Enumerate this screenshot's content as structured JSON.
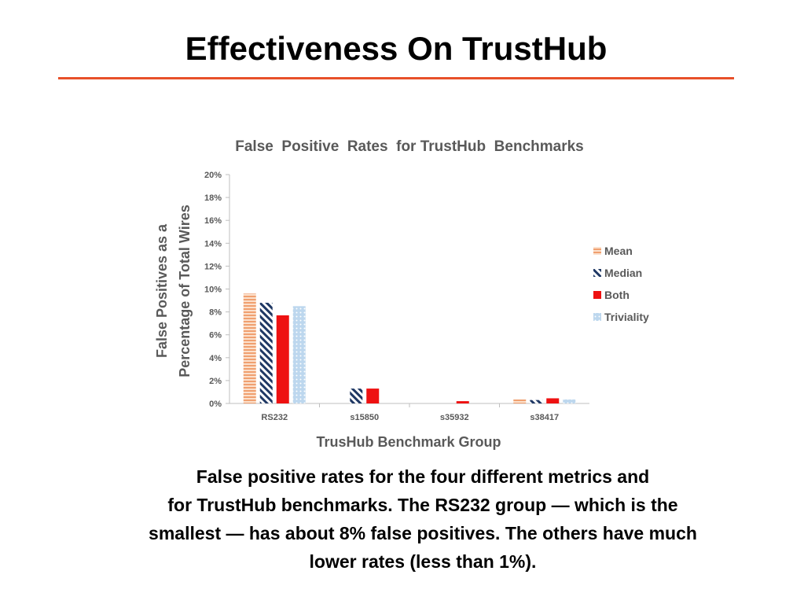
{
  "slide": {
    "title": "Effectiveness On TrustHub",
    "caption_lines": [
      "False positive rates for the four different metrics and",
      "for TrustHub benchmarks. The RS232 group — which is the",
      "smallest — has about 8% false positives. The others have much",
      "lower rates (less than 1%)."
    ]
  },
  "colors": {
    "title_rule": "#e8502a",
    "mean": "#f0a070",
    "median": "#1f3864",
    "both": "#ee1111",
    "triviality": "#bdd7ee",
    "axis_text": "#595959"
  },
  "chart_data": {
    "type": "bar",
    "title": "False  Positive  Rates  for TrustHub  Benchmarks",
    "xlabel": "TrusHub Benchmark Group",
    "ylabel_lines": [
      "False Positives as a",
      "Percentage of Total Wires"
    ],
    "categories": [
      "RS232",
      "s15850",
      "s35932",
      "s38417"
    ],
    "series": [
      {
        "name": "Mean",
        "values": [
          9.6,
          0,
          0,
          0.35
        ],
        "pattern": "hstripe",
        "color_key": "mean"
      },
      {
        "name": "Median",
        "values": [
          8.8,
          1.3,
          0,
          0.3
        ],
        "pattern": "diagonal",
        "color_key": "median"
      },
      {
        "name": "Both",
        "values": [
          7.7,
          1.3,
          0.2,
          0.45
        ],
        "pattern": "solid",
        "color_key": "both"
      },
      {
        "name": "Triviality",
        "values": [
          8.5,
          0,
          0,
          0.35
        ],
        "pattern": "dots",
        "color_key": "triviality"
      }
    ],
    "ylim": [
      0,
      20
    ],
    "yticks": [
      "0%",
      "2%",
      "4%",
      "6%",
      "8%",
      "10%",
      "12%",
      "14%",
      "16%",
      "18%",
      "20%"
    ],
    "legend_position": "right",
    "grid": false
  }
}
